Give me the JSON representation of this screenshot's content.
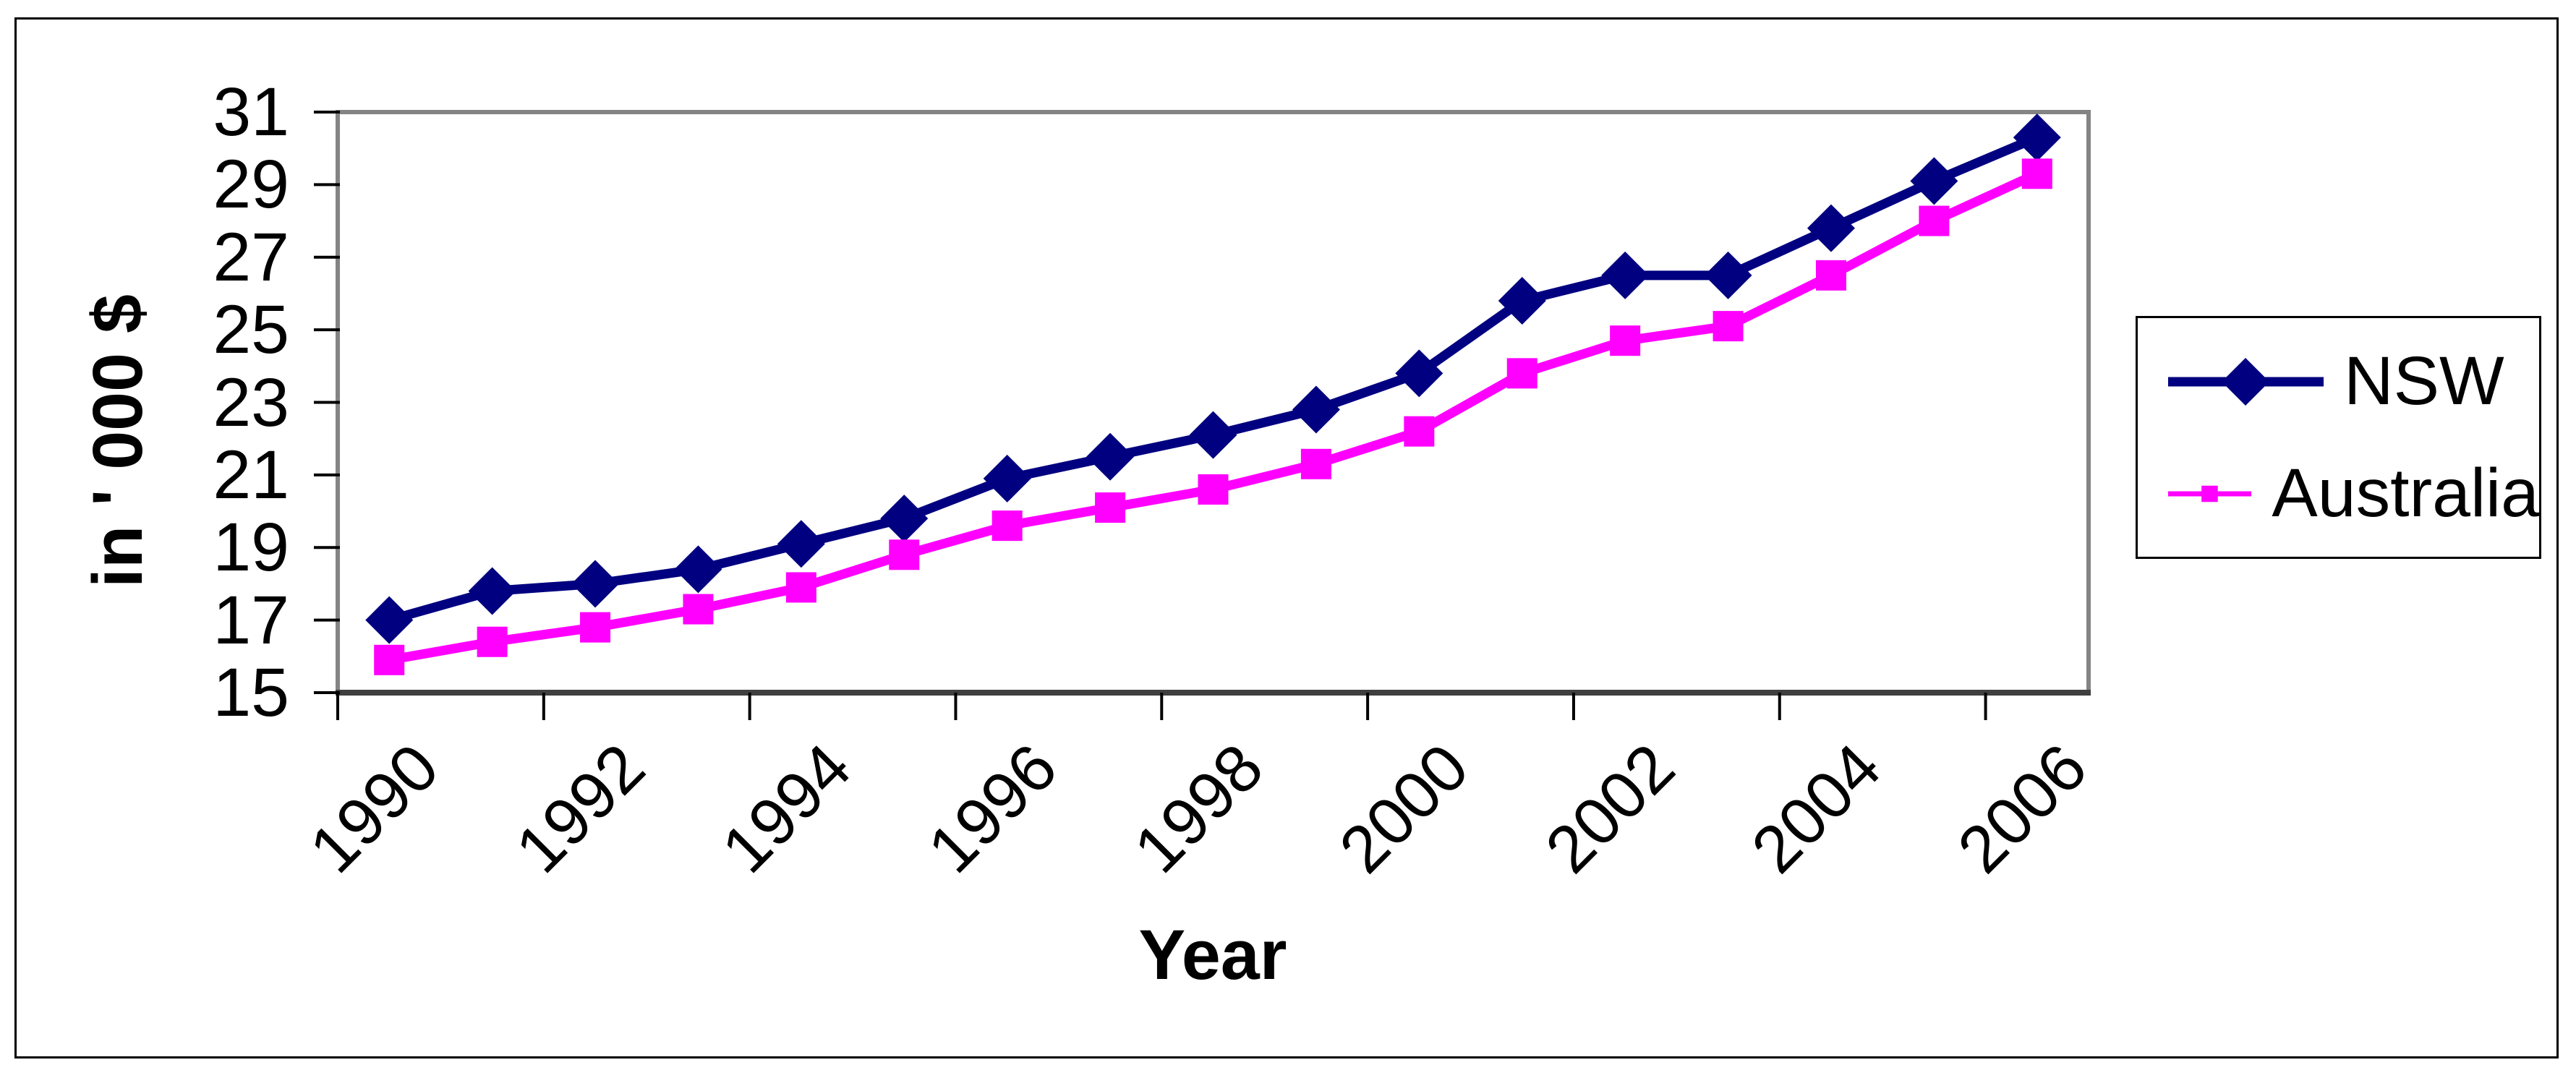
{
  "figure": {
    "background_color": "#FFFFFF",
    "outer_border_color": "#000000",
    "plot_border_color": "#848484",
    "axis_line_color": "#3f3f3f",
    "tick_color": "#000000"
  },
  "chart_data": {
    "type": "line",
    "title": "",
    "xlabel": "Year",
    "ylabel": "in ' 000 $",
    "x": [
      1990,
      1991,
      1992,
      1993,
      1994,
      1995,
      1996,
      1997,
      1998,
      1999,
      2000,
      2001,
      2002,
      2003,
      2004,
      2005,
      2006
    ],
    "x_tick_labels": [
      "1990",
      "1992",
      "1994",
      "1996",
      "1998",
      "2000",
      "2002",
      "2004",
      "2006"
    ],
    "y_ticks": [
      15,
      17,
      19,
      21,
      23,
      25,
      27,
      29,
      31
    ],
    "ylim": [
      15,
      31
    ],
    "grid": false,
    "legend_position": "right",
    "series": [
      {
        "name": "NSW",
        "color": "#000080",
        "marker": "diamond",
        "values": [
          17.0,
          17.8,
          18.0,
          18.4,
          19.1,
          19.8,
          20.9,
          21.5,
          22.1,
          22.8,
          23.8,
          25.8,
          26.5,
          26.5,
          27.8,
          29.1,
          30.3
        ]
      },
      {
        "name": "Australia",
        "color": "#FF00FF",
        "marker": "square",
        "values": [
          15.9,
          16.4,
          16.8,
          17.3,
          17.9,
          18.8,
          19.6,
          20.1,
          20.6,
          21.3,
          22.2,
          23.8,
          24.7,
          25.1,
          26.5,
          28.0,
          29.3
        ]
      }
    ]
  }
}
